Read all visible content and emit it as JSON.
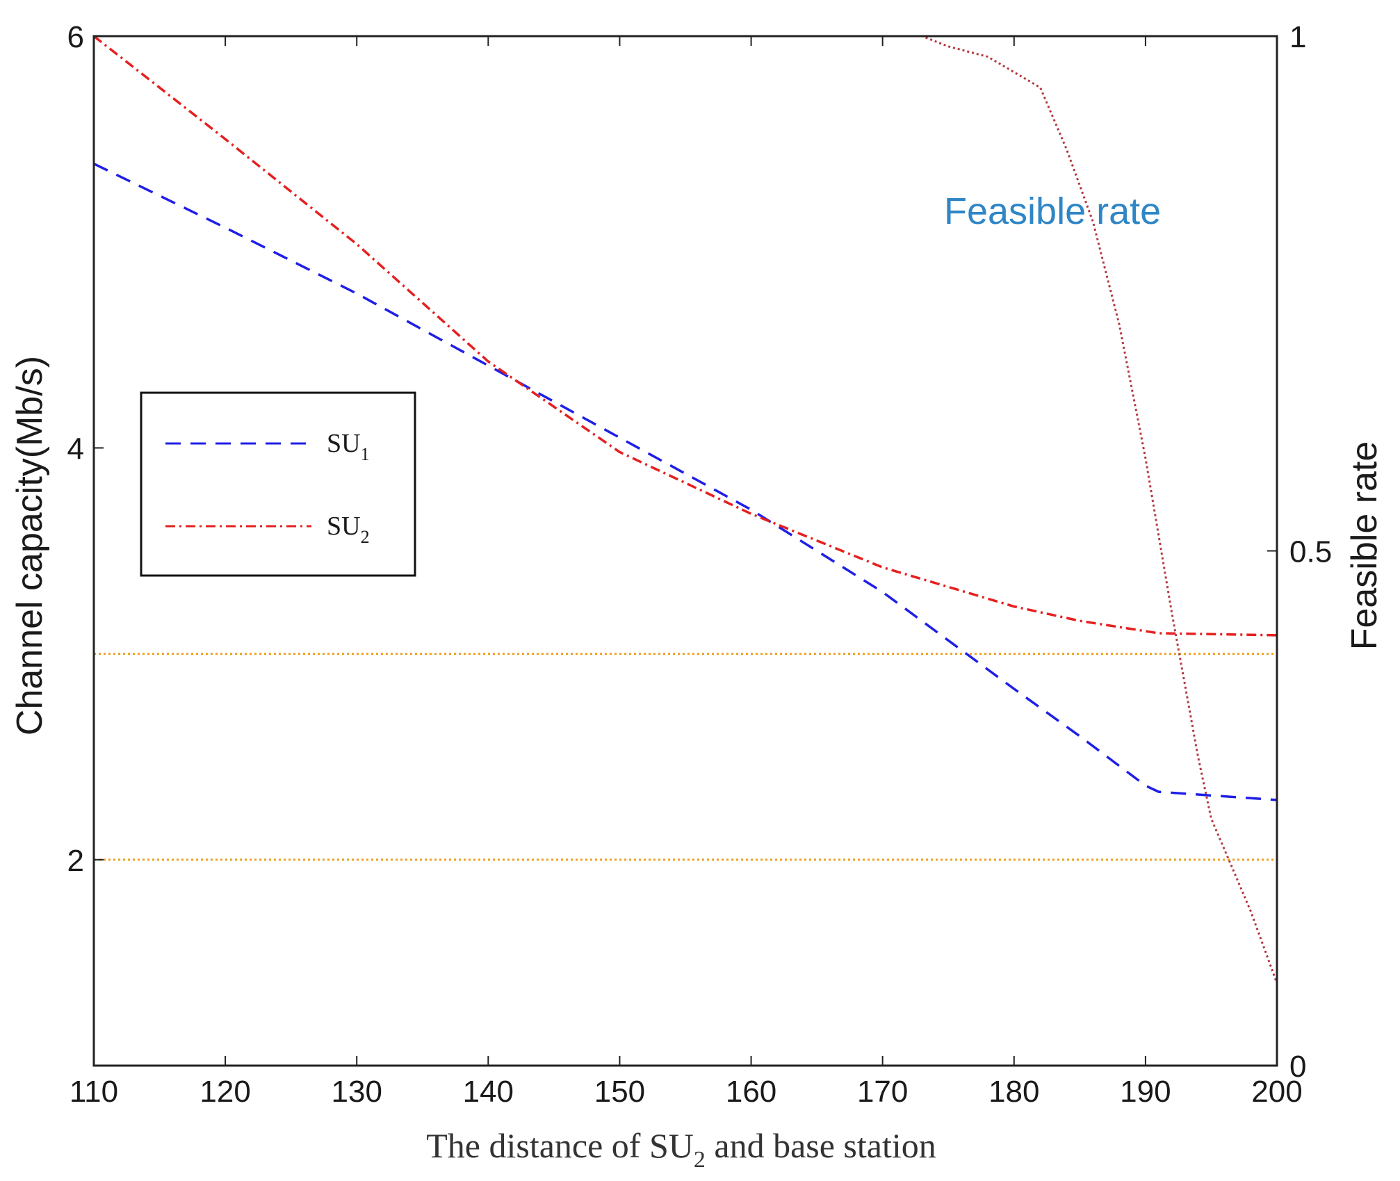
{
  "chart_data": {
    "type": "line",
    "xlabel": {
      "main": "The distance of SU",
      "sub": "2",
      "rest": " and base station"
    },
    "ylabel": "Channel capacity(Mb/s)",
    "y2label": "Feasible rate",
    "annotation": "Feasible rate",
    "xlim": [
      110,
      200
    ],
    "ylim": [
      1,
      6
    ],
    "y2lim": [
      0,
      1
    ],
    "xticks": [
      "110",
      "120",
      "130",
      "140",
      "150",
      "160",
      "170",
      "180",
      "190",
      "200"
    ],
    "yticks": [
      {
        "value": 2,
        "label": "2"
      },
      {
        "value": 4,
        "label": "4"
      },
      {
        "value": 6,
        "label": "6"
      }
    ],
    "y2ticks": [
      {
        "value": 0,
        "label": "0"
      },
      {
        "value": 0.5,
        "label": "0.5"
      },
      {
        "value": 1,
        "label": "1"
      }
    ],
    "series": [
      {
        "name": "SU1",
        "label_main": "SU",
        "label_sub": "1",
        "color": "#1f1fe6",
        "dash": "22 14",
        "axis": "left",
        "x": [
          110,
          120,
          130,
          140,
          150,
          160,
          170,
          180,
          185,
          190,
          191,
          200
        ],
        "y": [
          5.38,
          5.07,
          4.75,
          4.4,
          4.05,
          3.7,
          3.3,
          2.83,
          2.6,
          2.36,
          2.33,
          2.29
        ]
      },
      {
        "name": "SU2",
        "label_main": "SU",
        "label_sub": "2",
        "color": "#e61f1f",
        "dash": "14 6 3 6",
        "axis": "left",
        "x": [
          110,
          120,
          130,
          140,
          150,
          160,
          170,
          180,
          185,
          190,
          191,
          200
        ],
        "y": [
          6.0,
          5.5,
          4.99,
          4.42,
          3.98,
          3.68,
          3.42,
          3.23,
          3.16,
          3.11,
          3.1,
          3.09
        ]
      },
      {
        "name": "Feasible rate",
        "color": "#b5383f",
        "dash": "3 4",
        "axis": "right",
        "x": [
          110,
          173,
          175,
          178,
          182,
          184,
          186,
          188,
          190,
          192,
          194,
          195,
          196,
          198,
          200
        ],
        "y": [
          1.0,
          1.0,
          0.99,
          0.98,
          0.95,
          0.89,
          0.82,
          0.72,
          0.59,
          0.44,
          0.3,
          0.24,
          0.21,
          0.15,
          0.08
        ]
      }
    ],
    "reference_lines": [
      {
        "y": 3.0,
        "color": "#f0a020"
      },
      {
        "y": 2.0,
        "color": "#f0a020"
      }
    ],
    "legend_position": "middle-left"
  }
}
